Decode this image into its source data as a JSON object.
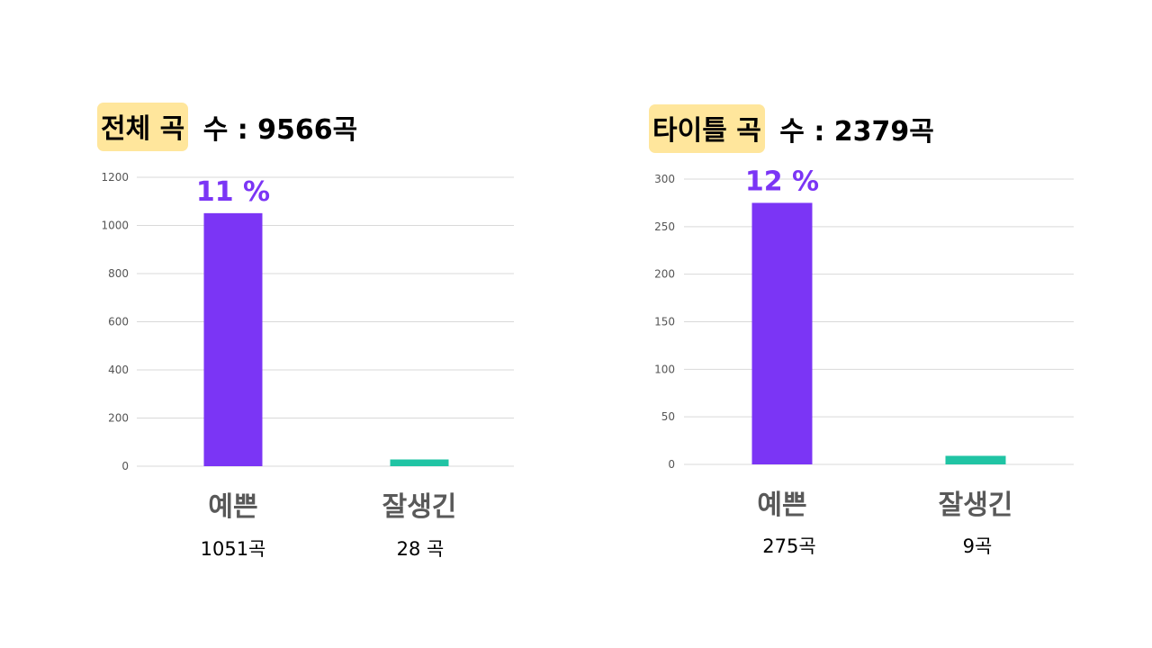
{
  "chart_data": [
    {
      "type": "bar",
      "title_highlight": "전체 곡",
      "title_rest": " 수 : 9566곡",
      "categories": [
        "예쁜",
        "잘생긴"
      ],
      "values": [
        1051,
        28
      ],
      "counts": [
        "1051곡",
        "28 곡"
      ],
      "percent_label": "11 %",
      "ylim": [
        0,
        1200
      ],
      "yticks": [
        0,
        200,
        400,
        600,
        800,
        1000,
        1200
      ],
      "grid": true,
      "colors": [
        "#7b35f5",
        "#20c4a4"
      ],
      "percent_color": "#7b35f5"
    },
    {
      "type": "bar",
      "title_highlight": "타이틀 곡",
      "title_rest": " 수 : 2379곡",
      "categories": [
        "예쁜",
        "잘생긴"
      ],
      "values": [
        275,
        9
      ],
      "counts": [
        "275곡",
        "9곡"
      ],
      "percent_label": "12 %",
      "ylim": [
        0,
        300
      ],
      "yticks": [
        0,
        50,
        100,
        150,
        200,
        250,
        300
      ],
      "grid": true,
      "colors": [
        "#7b35f5",
        "#20c4a4"
      ],
      "percent_color": "#7b35f5"
    }
  ],
  "colors": {
    "highlight": "#ffe69c",
    "grid": "#d9d9d9"
  }
}
